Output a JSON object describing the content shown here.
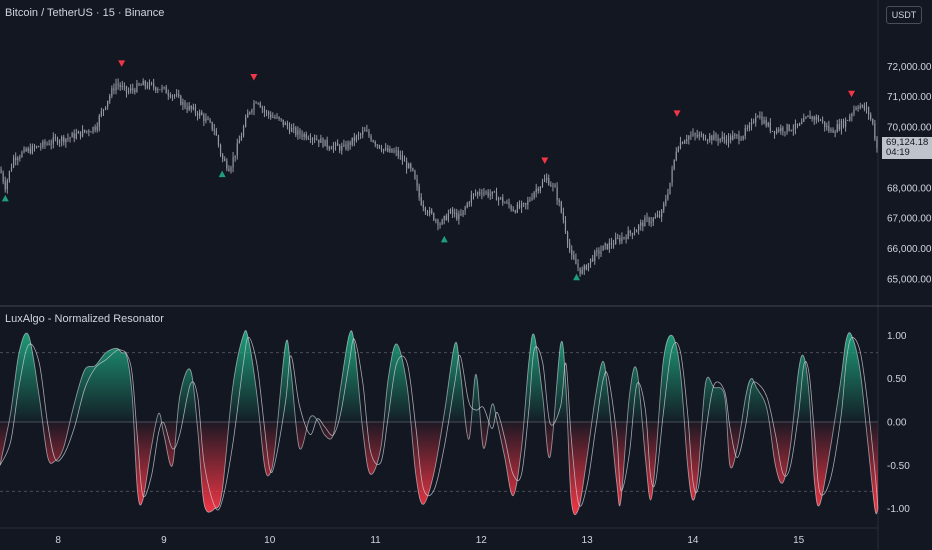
{
  "header": {
    "symbol_title": "Bitcoin / TetherUS · 15 · Binance",
    "currency_button": "USDT",
    "indicator_title": "LuxAlgo - Normalized Resonator"
  },
  "last_price": {
    "value": "69,124.18",
    "countdown": "04:19"
  },
  "colors": {
    "background": "#131722",
    "candles": "#9598a1",
    "bull": "#1e9e7a",
    "bear": "#f23645",
    "text": "#d1d4dc",
    "grid": "#2a2e39"
  },
  "chart_data": [
    {
      "type": "line",
      "name": "price-panel",
      "y_ticks": [
        "72,000.00",
        "71,000.00",
        "70,000.00",
        "68,000.00",
        "67,000.00",
        "66,000.00",
        "65,000.00"
      ],
      "y_tick_values": [
        72000,
        71000,
        70000,
        68000,
        67000,
        66000,
        65000
      ],
      "ylim": [
        64300,
        73200
      ],
      "xlim": [
        7.45,
        15.75
      ],
      "price_path": [
        [
          7.45,
          68600
        ],
        [
          7.5,
          68050
        ],
        [
          7.58,
          69000
        ],
        [
          7.7,
          69200
        ],
        [
          7.85,
          69400
        ],
        [
          8.0,
          69600
        ],
        [
          8.1,
          69650
        ],
        [
          8.25,
          69850
        ],
        [
          8.35,
          70000
        ],
        [
          8.45,
          70800
        ],
        [
          8.55,
          71450
        ],
        [
          8.65,
          71150
        ],
        [
          8.8,
          71400
        ],
        [
          8.95,
          71300
        ],
        [
          9.1,
          71050
        ],
        [
          9.2,
          70700
        ],
        [
          9.35,
          70400
        ],
        [
          9.48,
          69900
        ],
        [
          9.55,
          68950
        ],
        [
          9.62,
          68650
        ],
        [
          9.7,
          69400
        ],
        [
          9.8,
          70500
        ],
        [
          9.88,
          70950
        ],
        [
          9.95,
          70500
        ],
        [
          10.1,
          70200
        ],
        [
          10.25,
          69800
        ],
        [
          10.4,
          69700
        ],
        [
          10.55,
          69400
        ],
        [
          10.7,
          69300
        ],
        [
          10.8,
          69600
        ],
        [
          10.9,
          69850
        ],
        [
          11.0,
          69500
        ],
        [
          11.1,
          69200
        ],
        [
          11.2,
          69150
        ],
        [
          11.35,
          68500
        ],
        [
          11.42,
          67600
        ],
        [
          11.5,
          67200
        ],
        [
          11.62,
          66800
        ],
        [
          11.7,
          67200
        ],
        [
          11.8,
          67000
        ],
        [
          11.9,
          67700
        ],
        [
          12.0,
          67900
        ],
        [
          12.15,
          67700
        ],
        [
          12.3,
          67300
        ],
        [
          12.42,
          67400
        ],
        [
          12.5,
          67900
        ],
        [
          12.62,
          68300
        ],
        [
          12.7,
          67900
        ],
        [
          12.78,
          66900
        ],
        [
          12.85,
          65700
        ],
        [
          12.95,
          65200
        ],
        [
          13.05,
          65700
        ],
        [
          13.15,
          66000
        ],
        [
          13.3,
          66300
        ],
        [
          13.45,
          66600
        ],
        [
          13.55,
          66900
        ],
        [
          13.62,
          66950
        ],
        [
          13.7,
          67100
        ],
        [
          13.78,
          68100
        ],
        [
          13.85,
          69400
        ],
        [
          13.95,
          69700
        ],
        [
          14.1,
          69700
        ],
        [
          14.3,
          69600
        ],
        [
          14.45,
          69700
        ],
        [
          14.55,
          70000
        ],
        [
          14.6,
          70500
        ],
        [
          14.65,
          70250
        ],
        [
          14.75,
          69900
        ],
        [
          14.85,
          69950
        ],
        [
          15.0,
          70000
        ],
        [
          15.1,
          70350
        ],
        [
          15.2,
          70250
        ],
        [
          15.3,
          69850
        ],
        [
          15.45,
          70200
        ],
        [
          15.55,
          70750
        ],
        [
          15.65,
          70550
        ],
        [
          15.7,
          70100
        ],
        [
          15.75,
          69100
        ]
      ],
      "signals": [
        {
          "type": "buy",
          "x": 7.5,
          "price": 67650
        },
        {
          "type": "sell",
          "x": 8.6,
          "price": 72100
        },
        {
          "type": "buy",
          "x": 9.55,
          "price": 68450
        },
        {
          "type": "sell",
          "x": 9.85,
          "price": 71650
        },
        {
          "type": "buy",
          "x": 11.65,
          "price": 66300
        },
        {
          "type": "sell",
          "x": 12.6,
          "price": 68900
        },
        {
          "type": "buy",
          "x": 12.9,
          "price": 65050
        },
        {
          "type": "sell",
          "x": 13.85,
          "price": 70450
        },
        {
          "type": "sell",
          "x": 15.5,
          "price": 71100
        }
      ]
    },
    {
      "type": "area",
      "name": "normalized-resonator",
      "title": "LuxAlgo - Normalized Resonator",
      "ylim": [
        -1.2,
        1.2
      ],
      "y_ticks": [
        "1.00",
        "0.50",
        "0.00",
        "-0.50",
        "-1.00"
      ],
      "y_tick_values": [
        1.0,
        0.5,
        0.0,
        -0.5,
        -1.0
      ],
      "levels": [
        0.8,
        -0.8
      ],
      "xlim": [
        7.45,
        15.75
      ],
      "x_ticks": [
        "8",
        "9",
        "10",
        "11",
        "12",
        "13",
        "14",
        "15"
      ],
      "x_tick_values": [
        8,
        9,
        10,
        11,
        12,
        13,
        14,
        15
      ],
      "points": [
        [
          7.45,
          -0.5
        ],
        [
          7.55,
          0.1
        ],
        [
          7.63,
          0.8
        ],
        [
          7.72,
          1.0
        ],
        [
          7.82,
          0.3
        ],
        [
          7.9,
          -0.4
        ],
        [
          7.97,
          -0.45
        ],
        [
          8.05,
          -0.3
        ],
        [
          8.15,
          0.2
        ],
        [
          8.25,
          0.6
        ],
        [
          8.35,
          0.65
        ],
        [
          8.45,
          0.8
        ],
        [
          8.55,
          0.85
        ],
        [
          8.6,
          0.8
        ],
        [
          8.65,
          0.75
        ],
        [
          8.7,
          0.3
        ],
        [
          8.75,
          -0.8
        ],
        [
          8.8,
          -0.9
        ],
        [
          8.88,
          -0.3
        ],
        [
          8.95,
          0.1
        ],
        [
          9.0,
          -0.15
        ],
        [
          9.08,
          -0.5
        ],
        [
          9.15,
          0.3
        ],
        [
          9.25,
          0.6
        ],
        [
          9.32,
          -0.1
        ],
        [
          9.38,
          -0.95
        ],
        [
          9.48,
          -1.0
        ],
        [
          9.55,
          -0.8
        ],
        [
          9.65,
          0.4
        ],
        [
          9.75,
          1.0
        ],
        [
          9.8,
          0.95
        ],
        [
          9.88,
          0.3
        ],
        [
          9.95,
          -0.5
        ],
        [
          10.0,
          -0.6
        ],
        [
          10.05,
          -0.3
        ],
        [
          10.15,
          0.9
        ],
        [
          10.2,
          0.6
        ],
        [
          10.28,
          -0.3
        ],
        [
          10.38,
          0.05
        ],
        [
          10.45,
          0.02
        ],
        [
          10.52,
          -0.15
        ],
        [
          10.6,
          -0.15
        ],
        [
          10.67,
          0.4
        ],
        [
          10.75,
          1.0
        ],
        [
          10.8,
          0.9
        ],
        [
          10.88,
          -0.1
        ],
        [
          10.95,
          -0.6
        ],
        [
          11.05,
          -0.3
        ],
        [
          11.12,
          0.5
        ],
        [
          11.2,
          0.9
        ],
        [
          11.3,
          0.4
        ],
        [
          11.38,
          -0.6
        ],
        [
          11.45,
          -0.95
        ],
        [
          11.55,
          -0.6
        ],
        [
          11.65,
          0.1
        ],
        [
          11.75,
          0.9
        ],
        [
          11.8,
          0.6
        ],
        [
          11.88,
          -0.2
        ],
        [
          11.95,
          0.55
        ],
        [
          12.02,
          -0.3
        ],
        [
          12.1,
          0.2
        ],
        [
          12.15,
          0.0
        ],
        [
          12.22,
          -0.4
        ],
        [
          12.3,
          -0.85
        ],
        [
          12.38,
          -0.3
        ],
        [
          12.45,
          0.7
        ],
        [
          12.5,
          1.0
        ],
        [
          12.58,
          0.3
        ],
        [
          12.65,
          -0.4
        ],
        [
          12.75,
          0.9
        ],
        [
          12.8,
          0.4
        ],
        [
          12.85,
          -0.9
        ],
        [
          12.92,
          -1.0
        ],
        [
          13.0,
          -0.4
        ],
        [
          13.08,
          0.3
        ],
        [
          13.15,
          0.7
        ],
        [
          13.2,
          0.3
        ],
        [
          13.28,
          -0.7
        ],
        [
          13.32,
          -0.9
        ],
        [
          13.4,
          0.3
        ],
        [
          13.47,
          0.6
        ],
        [
          13.55,
          -0.4
        ],
        [
          13.6,
          -0.9
        ],
        [
          13.65,
          -0.4
        ],
        [
          13.72,
          0.7
        ],
        [
          13.8,
          1.0
        ],
        [
          13.88,
          0.6
        ],
        [
          13.95,
          -0.5
        ],
        [
          14.0,
          -0.9
        ],
        [
          14.05,
          -0.6
        ],
        [
          14.12,
          0.45
        ],
        [
          14.2,
          0.4
        ],
        [
          14.3,
          0.3
        ],
        [
          14.35,
          -0.5
        ],
        [
          14.42,
          -0.3
        ],
        [
          14.5,
          0.3
        ],
        [
          14.55,
          0.5
        ],
        [
          14.6,
          0.4
        ],
        [
          14.7,
          0.15
        ],
        [
          14.78,
          -0.5
        ],
        [
          14.85,
          -0.7
        ],
        [
          14.92,
          -0.3
        ],
        [
          15.0,
          0.6
        ],
        [
          15.05,
          0.75
        ],
        [
          15.1,
          0.3
        ],
        [
          15.15,
          -0.7
        ],
        [
          15.2,
          -0.95
        ],
        [
          15.3,
          -0.3
        ],
        [
          15.4,
          0.5
        ],
        [
          15.45,
          0.95
        ],
        [
          15.5,
          1.0
        ],
        [
          15.58,
          0.6
        ],
        [
          15.65,
          -0.2
        ],
        [
          15.72,
          -1.0
        ],
        [
          15.75,
          -1.0
        ]
      ]
    }
  ]
}
